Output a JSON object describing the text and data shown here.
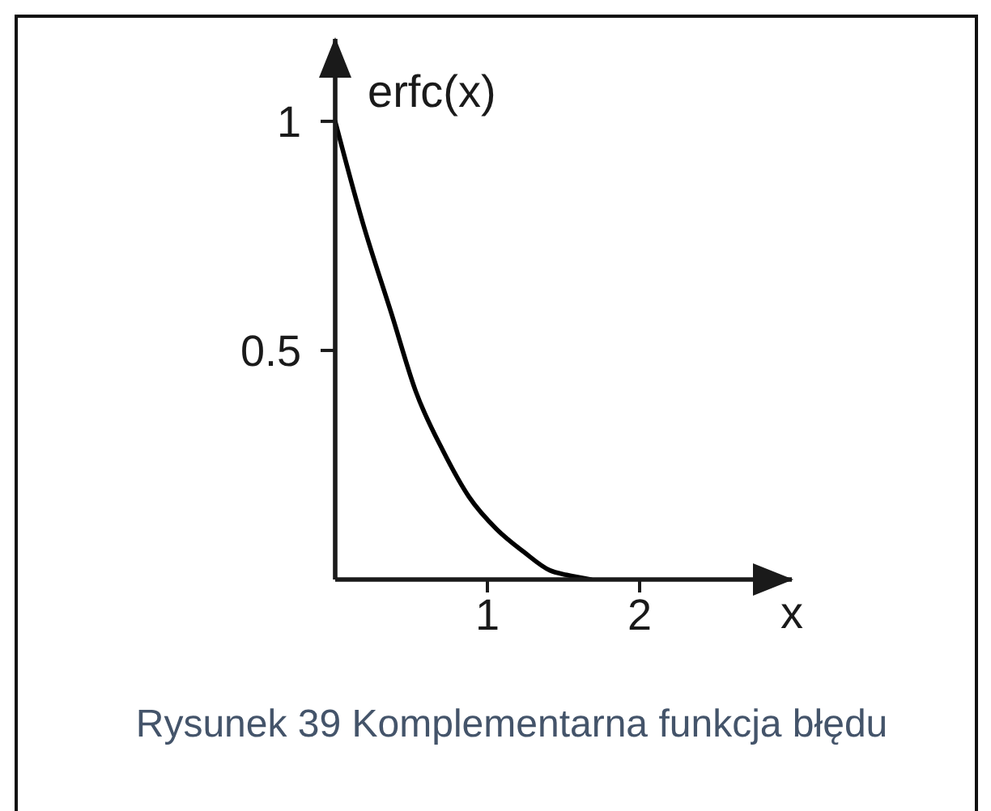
{
  "chart_data": {
    "type": "line",
    "x": [
      0,
      0.18,
      0.37,
      0.53,
      0.71,
      0.88,
      1.06,
      1.24,
      1.41,
      1.52,
      1.68
    ],
    "series": [
      {
        "color": "#000000",
        "values": [
          1,
          0.78,
          0.58,
          0.41,
          0.28,
          0.18,
          0.11,
          0.06,
          0.02,
          0.01,
          0
        ]
      }
    ],
    "xlabel": "x",
    "ylabel": "erfc(x)",
    "xlim": [
      0,
      3
    ],
    "ylim": [
      0,
      1.18
    ],
    "xticks": [
      1,
      2
    ],
    "yticks": [
      0.5,
      1
    ],
    "line_style": "solid",
    "annotations": [
      "Rysunek 39 Komplementarna funkcja błędu"
    ]
  }
}
